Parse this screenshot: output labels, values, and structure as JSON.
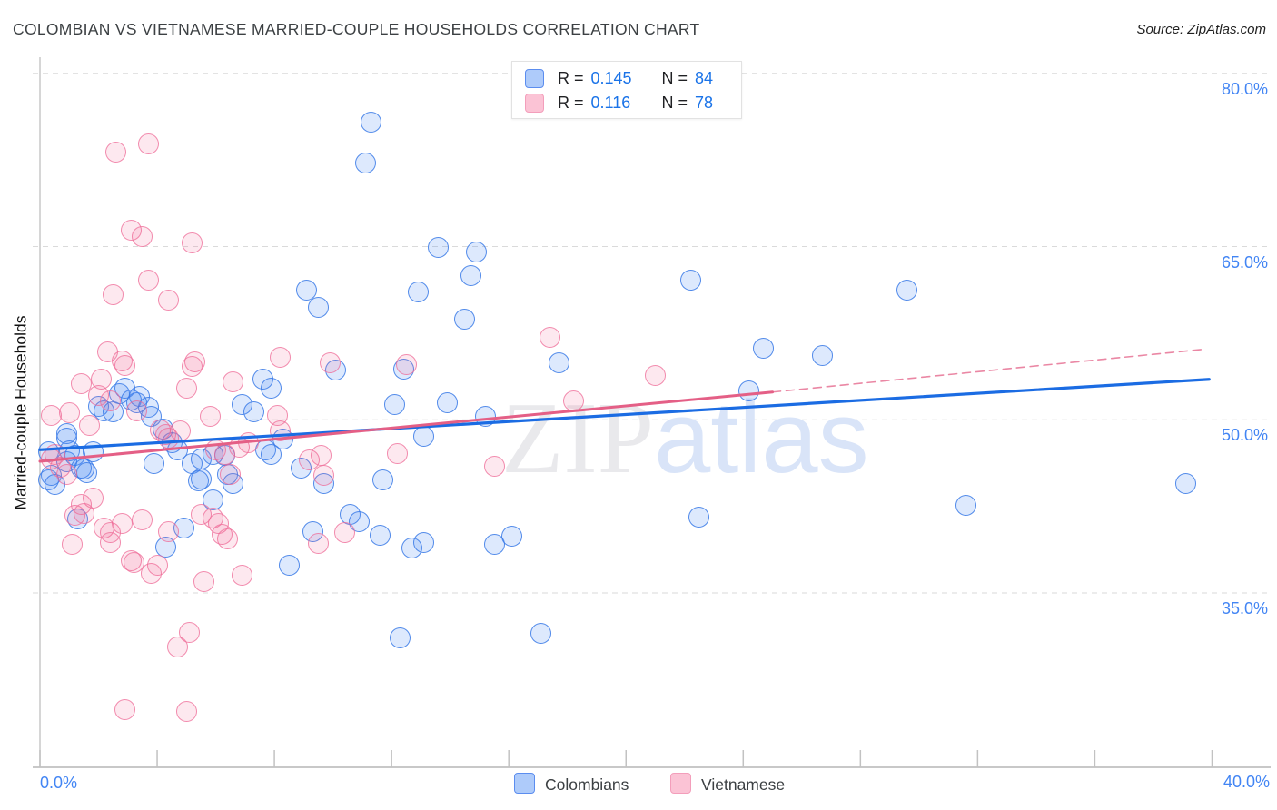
{
  "title": "COLOMBIAN VS VIETNAMESE MARRIED-COUPLE HOUSEHOLDS CORRELATION CHART",
  "source": "Source: ZipAtlas.com",
  "watermark": {
    "zip": "ZIP",
    "atlas": "atlas"
  },
  "y_axis": {
    "title": "Married-couple Households"
  },
  "x_axis": {
    "min_label": "0.0%",
    "max_label": "40.0%"
  },
  "legend_box": {
    "rows": [
      {
        "series": "Colombians",
        "r_label": "R =",
        "r_value": "0.145",
        "n_label": "N =",
        "n_value": "84"
      },
      {
        "series": "Vietnamese",
        "r_label": "R =",
        "r_value": "0.116",
        "n_label": "N =",
        "n_value": "78"
      }
    ]
  },
  "bottom_legend": {
    "colombians_label": "Colombians",
    "vietnamese_label": "Vietnamese"
  },
  "colors": {
    "blue_stroke": "#3a7ae8",
    "blue_fill": "rgba(66,133,244,0.18)",
    "pink_stroke": "#ee6b97",
    "pink_fill": "rgba(240,98,146,0.15)",
    "blue_trend": "#1b6ce3",
    "pink_trend": "#e45f86",
    "gridline": "#dadada",
    "axis": "#c4c4c4",
    "tick_label": "#4285f4"
  },
  "chart_data": {
    "type": "scatter",
    "title": "COLOMBIAN VS VIETNAMESE MARRIED-COUPLE HOUSEHOLDS CORRELATION CHART",
    "xlabel": "",
    "ylabel": "Married-couple Households",
    "x_range": [
      0,
      42.0
    ],
    "y_range": [
      19.9,
      81.4
    ],
    "x_tick_values": [
      0,
      4,
      8,
      12,
      16,
      20,
      24,
      28,
      32,
      36,
      40
    ],
    "y_gridlines": [
      80,
      65,
      50,
      35
    ],
    "y_gridline_labels": [
      "80.0%",
      "65.0%",
      "50.0%",
      "35.0%"
    ],
    "legend_position": "top-center",
    "grid": "horizontal-dashed",
    "series": [
      {
        "name": "Colombians",
        "R": 0.145,
        "N": 84,
        "points": [
          [
            0.3,
            47.2
          ],
          [
            0.4,
            45.2
          ],
          [
            0.3,
            44.8
          ],
          [
            0.5,
            44.4
          ],
          [
            0.9,
            48.8
          ],
          [
            0.9,
            48.4
          ],
          [
            0.9,
            46.4
          ],
          [
            1.0,
            47.3
          ],
          [
            1.2,
            46.9
          ],
          [
            1.4,
            45.8
          ],
          [
            1.5,
            45.7
          ],
          [
            1.6,
            45.4
          ],
          [
            1.8,
            47.2
          ],
          [
            2.0,
            51.2
          ],
          [
            2.2,
            50.8
          ],
          [
            2.5,
            50.7
          ],
          [
            2.7,
            52.3
          ],
          [
            2.9,
            52.7
          ],
          [
            3.1,
            51.7
          ],
          [
            3.3,
            51.5
          ],
          [
            3.4,
            52.0
          ],
          [
            3.7,
            51.1
          ],
          [
            3.8,
            50.3
          ],
          [
            4.2,
            49.2
          ],
          [
            4.5,
            48.0
          ],
          [
            4.7,
            47.4
          ],
          [
            3.9,
            46.2
          ],
          [
            5.2,
            46.2
          ],
          [
            5.5,
            46.6
          ],
          [
            5.4,
            44.7
          ],
          [
            5.5,
            44.9
          ],
          [
            5.9,
            43.1
          ],
          [
            6.3,
            46.9
          ],
          [
            6.4,
            45.3
          ],
          [
            6.6,
            44.5
          ],
          [
            6.9,
            51.3
          ],
          [
            7.3,
            50.7
          ],
          [
            7.6,
            53.5
          ],
          [
            7.9,
            52.7
          ],
          [
            7.7,
            47.4
          ],
          [
            7.9,
            47.0
          ],
          [
            8.3,
            48.3
          ],
          [
            8.9,
            45.8
          ],
          [
            9.7,
            44.5
          ],
          [
            4.9,
            40.6
          ],
          [
            4.3,
            39.0
          ],
          [
            8.5,
            37.4
          ],
          [
            9.3,
            40.3
          ],
          [
            1.3,
            41.4
          ],
          [
            9.1,
            61.2
          ],
          [
            9.5,
            59.7
          ],
          [
            10.1,
            54.3
          ],
          [
            10.6,
            41.8
          ],
          [
            10.9,
            41.2
          ],
          [
            11.6,
            40.0
          ],
          [
            11.3,
            75.8
          ],
          [
            11.1,
            72.2
          ],
          [
            11.7,
            44.8
          ],
          [
            12.1,
            51.3
          ],
          [
            12.4,
            54.4
          ],
          [
            12.7,
            38.9
          ],
          [
            12.9,
            61.1
          ],
          [
            13.1,
            48.6
          ],
          [
            13.1,
            39.4
          ],
          [
            13.6,
            64.9
          ],
          [
            13.9,
            51.5
          ],
          [
            14.5,
            58.7
          ],
          [
            14.7,
            62.5
          ],
          [
            14.9,
            64.5
          ],
          [
            15.2,
            50.3
          ],
          [
            15.5,
            39.2
          ],
          [
            16.1,
            39.9
          ],
          [
            12.3,
            31.1
          ],
          [
            17.1,
            31.5
          ],
          [
            17.7,
            54.9
          ],
          [
            22.2,
            62.1
          ],
          [
            22.5,
            41.6
          ],
          [
            24.2,
            52.5
          ],
          [
            24.7,
            56.2
          ],
          [
            26.7,
            55.6
          ],
          [
            29.6,
            61.2
          ],
          [
            31.6,
            42.6
          ],
          [
            39.1,
            44.5
          ],
          [
            5.9,
            47.0
          ]
        ]
      },
      {
        "name": "Vietnamese",
        "R": 0.116,
        "N": 78,
        "points": [
          [
            0.4,
            50.4
          ],
          [
            1.0,
            50.6
          ],
          [
            1.4,
            53.1
          ],
          [
            2.1,
            53.5
          ],
          [
            2.0,
            52.1
          ],
          [
            1.7,
            49.5
          ],
          [
            0.7,
            45.9
          ],
          [
            2.4,
            51.6
          ],
          [
            2.9,
            54.7
          ],
          [
            3.3,
            50.8
          ],
          [
            0.4,
            46.6
          ],
          [
            2.6,
            73.2
          ],
          [
            3.7,
            73.9
          ],
          [
            3.1,
            66.4
          ],
          [
            3.5,
            65.9
          ],
          [
            5.2,
            65.3
          ],
          [
            3.7,
            62.1
          ],
          [
            2.5,
            60.8
          ],
          [
            4.4,
            60.4
          ],
          [
            2.3,
            55.9
          ],
          [
            2.8,
            55.1
          ],
          [
            5.3,
            55.0
          ],
          [
            8.2,
            55.4
          ],
          [
            9.9,
            54.9
          ],
          [
            12.5,
            54.8
          ],
          [
            17.4,
            57.1
          ],
          [
            21.0,
            53.8
          ],
          [
            4.1,
            49.1
          ],
          [
            4.3,
            48.7
          ],
          [
            4.4,
            48.4
          ],
          [
            4.8,
            49.0
          ],
          [
            5.0,
            52.7
          ],
          [
            5.2,
            54.6
          ],
          [
            5.8,
            50.3
          ],
          [
            6.0,
            47.4
          ],
          [
            6.6,
            53.3
          ],
          [
            6.3,
            47.0
          ],
          [
            6.5,
            45.3
          ],
          [
            6.8,
            47.6
          ],
          [
            7.1,
            48.0
          ],
          [
            8.1,
            50.4
          ],
          [
            8.2,
            49.0
          ],
          [
            9.2,
            46.5
          ],
          [
            9.6,
            46.9
          ],
          [
            9.7,
            45.2
          ],
          [
            1.4,
            42.7
          ],
          [
            1.8,
            43.2
          ],
          [
            1.2,
            41.7
          ],
          [
            1.5,
            41.9
          ],
          [
            2.2,
            40.6
          ],
          [
            2.4,
            40.2
          ],
          [
            2.4,
            39.4
          ],
          [
            1.1,
            39.2
          ],
          [
            0.9,
            45.3
          ],
          [
            2.8,
            41.0
          ],
          [
            3.5,
            41.3
          ],
          [
            4.0,
            37.4
          ],
          [
            3.1,
            37.8
          ],
          [
            4.4,
            40.3
          ],
          [
            0.5,
            47.0
          ],
          [
            5.5,
            41.8
          ],
          [
            5.9,
            41.5
          ],
          [
            6.1,
            41.0
          ],
          [
            6.2,
            40.1
          ],
          [
            6.4,
            39.7
          ],
          [
            5.6,
            36.0
          ],
          [
            6.9,
            36.5
          ],
          [
            3.2,
            37.6
          ],
          [
            3.8,
            36.7
          ],
          [
            12.2,
            47.1
          ],
          [
            15.5,
            46.0
          ],
          [
            18.2,
            51.6
          ],
          [
            10.4,
            40.2
          ],
          [
            9.5,
            39.3
          ],
          [
            5.1,
            31.6
          ],
          [
            4.7,
            30.3
          ],
          [
            2.9,
            24.9
          ],
          [
            5.0,
            24.7
          ]
        ]
      }
    ],
    "trend_lines": [
      {
        "series": "Colombians",
        "x1": 0,
        "y1": 47.4,
        "x2": 39.9,
        "y2": 53.5,
        "style": "solid"
      },
      {
        "series": "Vietnamese",
        "x1": 0,
        "y1": 46.4,
        "x2": 25.0,
        "y2": 52.4,
        "style": "solid"
      },
      {
        "series": "Vietnamese",
        "x1": 25.0,
        "y1": 52.4,
        "x2": 39.7,
        "y2": 56.1,
        "style": "dashed"
      }
    ]
  }
}
